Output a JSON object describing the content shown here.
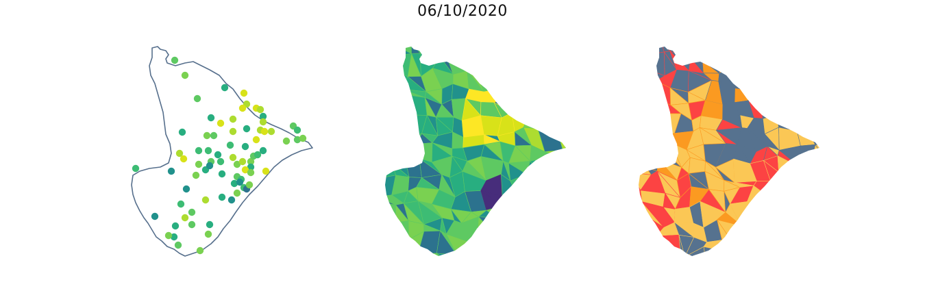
{
  "title": "06/10/2020",
  "colors": {
    "outline": "#566f8c",
    "viridis": [
      "#472d7b",
      "#2c728e",
      "#21918c",
      "#28ae80",
      "#3dbc74",
      "#5ec962",
      "#7ad151",
      "#addc30",
      "#d8e219",
      "#fde725"
    ],
    "categories": [
      "#56728f",
      "#fc4343",
      "#fb9a21",
      "#fbc755"
    ]
  },
  "maps": [
    {
      "kind": "point-map"
    },
    {
      "kind": "choropleth-continuous",
      "palette": "viridis"
    },
    {
      "kind": "choropleth-categorical",
      "palette": "categories"
    }
  ]
}
